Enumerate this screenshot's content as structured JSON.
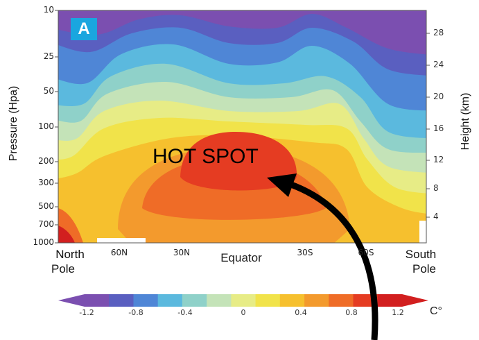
{
  "chart_data": {
    "type": "heatmap",
    "panel_label": "A",
    "annotation": "HOT SPOT",
    "ylabel_left": "Pressure (Hpa)",
    "ylabel_right": "Height (km)",
    "y_ticks_left": [
      "10",
      "25",
      "50",
      "100",
      "200",
      "300",
      "500",
      "700",
      "1000"
    ],
    "y_ticks_right": [
      "28",
      "24",
      "20",
      "16",
      "12",
      "8",
      "4"
    ],
    "x_ticks": [
      "60N",
      "30N",
      "Equator",
      "30S",
      "60S"
    ],
    "x_end_left": [
      "North",
      "Pole"
    ],
    "x_end_right": [
      "South",
      "Pole"
    ],
    "colorbar": {
      "unit": "C°",
      "ticks": [
        "-1.2",
        "-0.8",
        "-0.4",
        "0",
        "0.4",
        "0.8",
        "1.2"
      ],
      "range": [
        -1.2,
        1.2
      ],
      "colors": [
        "#7b4fb0",
        "#5a5fc0",
        "#4f86d6",
        "#5bb9de",
        "#8fd1c9",
        "#c4e3b8",
        "#e7ec86",
        "#f1e34a",
        "#f6c02e",
        "#f39a2d",
        "#ef6c27",
        "#e53c22",
        "#d21f1f"
      ]
    }
  }
}
